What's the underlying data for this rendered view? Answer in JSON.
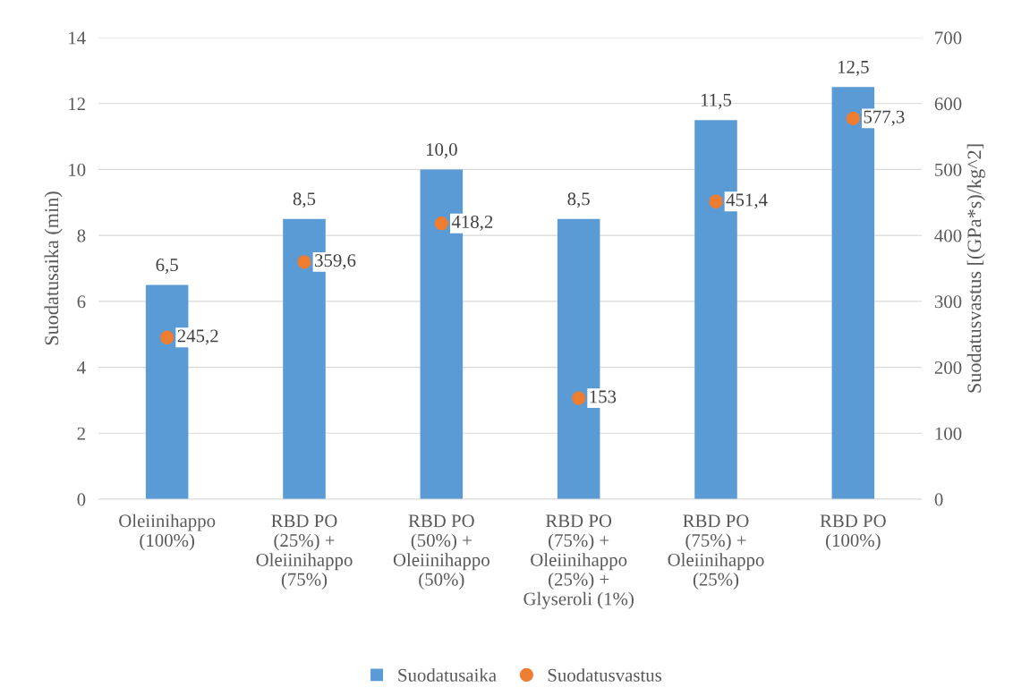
{
  "chart_data": {
    "type": "bar",
    "categories": [
      "Oleiinihappo\n(100%)",
      "RBD PO\n(25%) +\nOleiinihappo\n(75%)",
      "RBD PO\n(50%) +\nOleiinihappo\n(50%)",
      "RBD PO\n(75%) +\nOleiinihappo\n(25%) +\nGlyseroli (1%)",
      "RBD PO\n(75%) +\nOleiinihappo\n(25%)",
      "RBD PO\n(100%)"
    ],
    "series": [
      {
        "name": "Suodatusaika",
        "color": "#5b9bd5",
        "values": [
          6.5,
          8.5,
          10.0,
          8.5,
          11.5,
          12.5
        ],
        "value_labels": [
          "6,5",
          "8,5",
          "10,0",
          "8,5",
          "11,5",
          "12,5"
        ]
      },
      {
        "name": "Suodatusvastus",
        "type": "scatter",
        "axis": "y2",
        "color": "#ed7d31",
        "marker": "circle",
        "values": [
          245.2,
          359.6,
          418.2,
          153,
          451.4,
          577.3
        ],
        "value_labels": [
          "245,2",
          "359,6",
          "418,2",
          "153",
          "451,4",
          "577,3"
        ]
      }
    ],
    "ylabel": "Suodatusaika (min)",
    "y2label": "Suodatusvastus [(GPa*s)/kg^2]",
    "ylim": [
      0,
      14
    ],
    "yticks": [
      0,
      2,
      4,
      6,
      8,
      10,
      12,
      14
    ],
    "y2lim": [
      0,
      700
    ],
    "y2ticks": [
      0,
      100,
      200,
      300,
      400,
      500,
      600,
      700
    ],
    "grid": "y",
    "legend": "bottom"
  }
}
